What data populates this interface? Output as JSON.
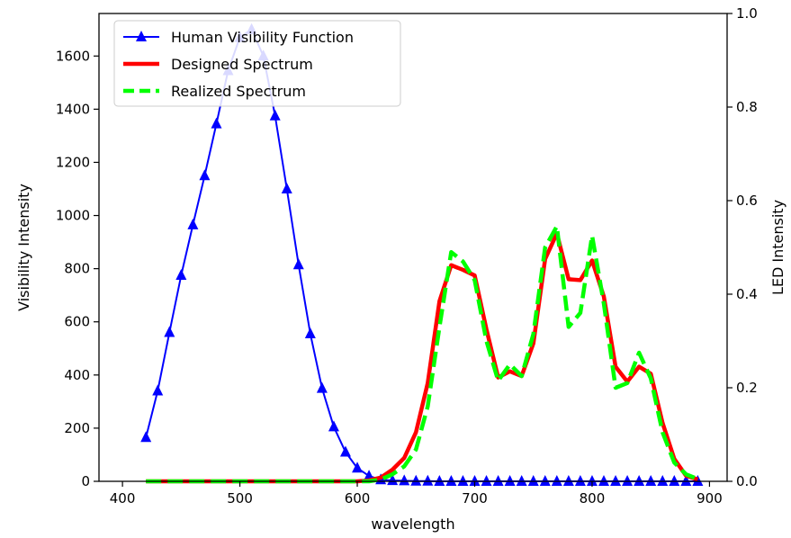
{
  "chart_data": {
    "type": "line",
    "xlabel": "wavelength",
    "ylabel_left": "Visibility Intensity",
    "ylabel_right": "LED Intensity",
    "xlim": [
      380,
      915
    ],
    "ylim_left": [
      0,
      1760
    ],
    "ylim_right": [
      0.0,
      1.0
    ],
    "x_ticks": [
      400,
      500,
      600,
      700,
      800,
      900
    ],
    "y_ticks_left": [
      0,
      200,
      400,
      600,
      800,
      1000,
      1200,
      1400,
      1600
    ],
    "y_ticks_right": [
      "0.0",
      "0.2",
      "0.4",
      "0.6",
      "0.8",
      "1.0"
    ],
    "legend_placement": "upper-left",
    "grid": false,
    "series": [
      {
        "name": "Human Visibility Function",
        "axis": "left",
        "color": "#0000ff",
        "linestyle": "solid",
        "marker": "triangle",
        "x": [
          420,
          430,
          440,
          450,
          460,
          470,
          480,
          490,
          500,
          510,
          520,
          530,
          540,
          550,
          560,
          570,
          580,
          590,
          600,
          610,
          620,
          630,
          640,
          650,
          660,
          670,
          680,
          690,
          700,
          710,
          720,
          730,
          740,
          750,
          760,
          770,
          780,
          790,
          800,
          810,
          820,
          830,
          840,
          850,
          860,
          870,
          880,
          890
        ],
        "y": [
          165,
          340,
          560,
          775,
          965,
          1150,
          1345,
          1545,
          1670,
          1700,
          1600,
          1375,
          1100,
          815,
          555,
          350,
          205,
          110,
          50,
          20,
          6,
          3,
          2,
          1,
          1,
          0,
          0,
          0,
          0,
          0,
          0,
          0,
          0,
          0,
          0,
          0,
          0,
          0,
          0,
          0,
          0,
          0,
          0,
          0,
          0,
          0,
          0,
          0
        ]
      },
      {
        "name": "Designed Spectrum",
        "axis": "right",
        "color": "#ff0000",
        "linestyle": "solid",
        "x": [
          420,
          600,
          610,
          620,
          630,
          640,
          650,
          660,
          670,
          680,
          690,
          700,
          710,
          720,
          730,
          740,
          750,
          760,
          770,
          780,
          790,
          800,
          810,
          820,
          830,
          840,
          850,
          860,
          870,
          880,
          890
        ],
        "y": [
          0.0,
          0.0,
          0.002,
          0.008,
          0.025,
          0.05,
          0.105,
          0.21,
          0.385,
          0.462,
          0.452,
          0.44,
          0.325,
          0.222,
          0.235,
          0.225,
          0.295,
          0.475,
          0.53,
          0.432,
          0.43,
          0.472,
          0.395,
          0.245,
          0.213,
          0.245,
          0.23,
          0.125,
          0.048,
          0.012,
          0.004
        ]
      },
      {
        "name": "Realized Spectrum",
        "axis": "right",
        "color": "#00ff00",
        "linestyle": "dashed",
        "x": [
          420,
          600,
          610,
          620,
          630,
          640,
          650,
          660,
          670,
          680,
          690,
          700,
          710,
          720,
          730,
          740,
          750,
          760,
          770,
          780,
          790,
          800,
          810,
          820,
          830,
          840,
          850,
          860,
          870,
          880,
          890
        ],
        "y": [
          0.0,
          0.0,
          0.0,
          0.004,
          0.015,
          0.032,
          0.068,
          0.16,
          0.33,
          0.49,
          0.47,
          0.43,
          0.3,
          0.215,
          0.25,
          0.225,
          0.315,
          0.5,
          0.545,
          0.33,
          0.36,
          0.525,
          0.38,
          0.2,
          0.21,
          0.275,
          0.22,
          0.105,
          0.04,
          0.015,
          0.005
        ]
      }
    ]
  }
}
